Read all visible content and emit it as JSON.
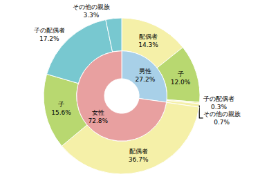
{
  "chart_data": [
    {
      "type": "pie",
      "categories": [
        "男性",
        "女性"
      ],
      "values": [
        27.2,
        72.8
      ],
      "value_labels": [
        "27.2%",
        "72.8%"
      ],
      "colors": [
        "#a8d0e8",
        "#e8a0a0"
      ],
      "data_labels": true
    },
    {
      "type": "pie",
      "categories": [
        "配偶者",
        "子",
        "子の配偶者",
        "その他の親族",
        "配偶者",
        "子",
        "子の配偶者",
        "その他の親族"
      ],
      "values": [
        14.3,
        12.0,
        0.3,
        0.7,
        36.7,
        15.6,
        17.2,
        3.3
      ],
      "value_labels": [
        "14.3%",
        "12.0%",
        "0.3%",
        "0.7%",
        "36.7%",
        "15.6%",
        "17.2%",
        "3.3%"
      ],
      "colors": [
        "#f5f0a8",
        "#b8d870",
        "#f5f0a8",
        "#f5f0a8",
        "#f5f0a8",
        "#b8d870",
        "#78c8d0",
        "#78c8d0"
      ],
      "data_labels": true
    }
  ]
}
